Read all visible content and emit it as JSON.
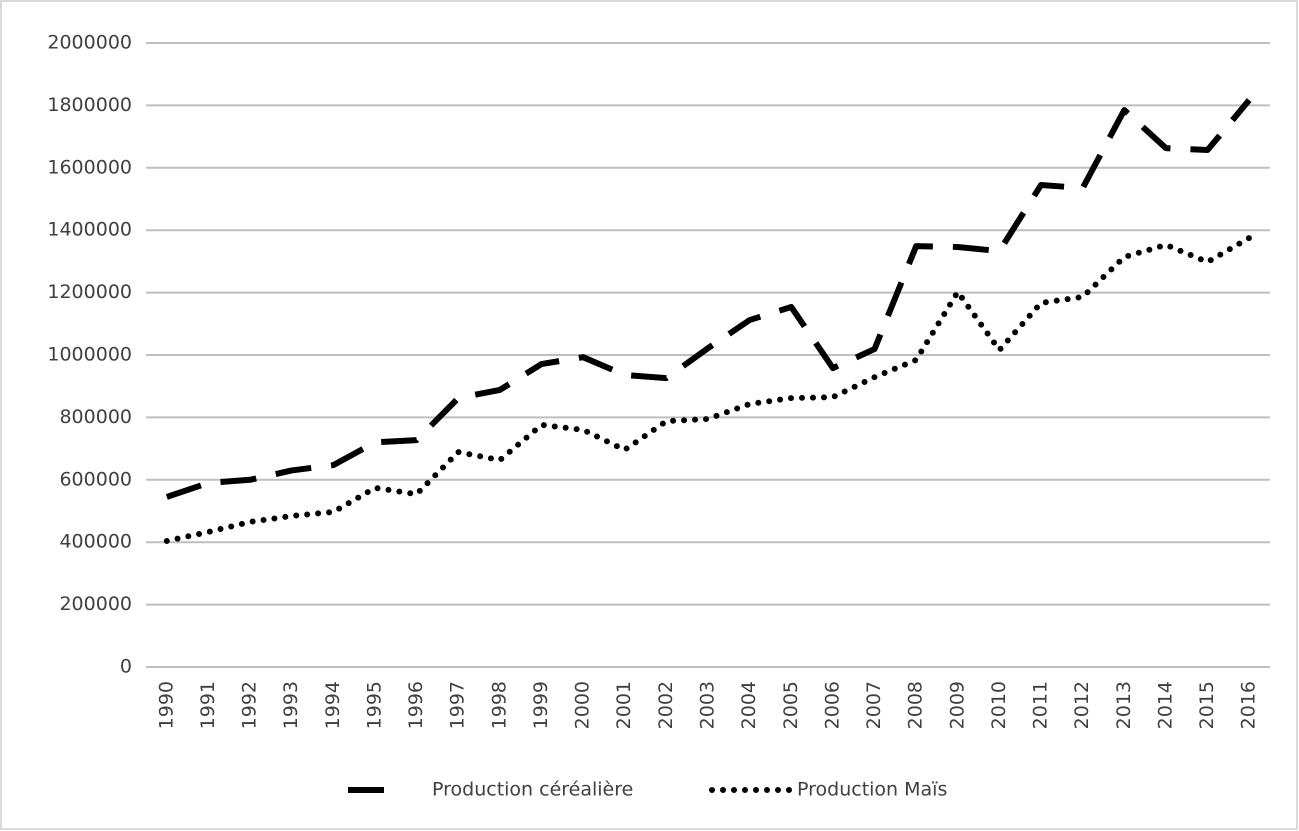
{
  "chart_data": {
    "type": "line",
    "categories": [
      "1990",
      "1991",
      "1992",
      "1993",
      "1994",
      "1995",
      "1996",
      "1997",
      "1998",
      "1999",
      "2000",
      "2001",
      "2002",
      "2003",
      "2004",
      "2005",
      "2006",
      "2007",
      "2008",
      "2009",
      "2010",
      "2011",
      "2012",
      "2013",
      "2014",
      "2015",
      "2016"
    ],
    "series": [
      {
        "name": "Production céréalière",
        "color": "#000000",
        "style": "dashed",
        "values": [
          545000,
          590000,
          600000,
          630000,
          647000,
          720000,
          727000,
          862000,
          888000,
          971000,
          993000,
          936000,
          926000,
          1022000,
          1112000,
          1154000,
          958000,
          1019000,
          1349000,
          1346000,
          1333000,
          1545000,
          1535000,
          1785000,
          1663000,
          1657000,
          1817000
        ]
      },
      {
        "name": "Production Maïs",
        "color": "#000000",
        "style": "dotted",
        "values": [
          404000,
          433000,
          465000,
          484000,
          497000,
          574000,
          554000,
          689000,
          663000,
          776000,
          760000,
          696000,
          788000,
          795000,
          843000,
          862000,
          865000,
          929000,
          984000,
          1202000,
          1016000,
          1167000,
          1186000,
          1314000,
          1353000,
          1298000,
          1375000
        ]
      }
    ],
    "ylim": [
      0,
      2000000
    ],
    "yticks": [
      0,
      200000,
      400000,
      600000,
      800000,
      1000000,
      1200000,
      1400000,
      1600000,
      1800000,
      2000000
    ],
    "grid": true,
    "legend": "bottom"
  }
}
